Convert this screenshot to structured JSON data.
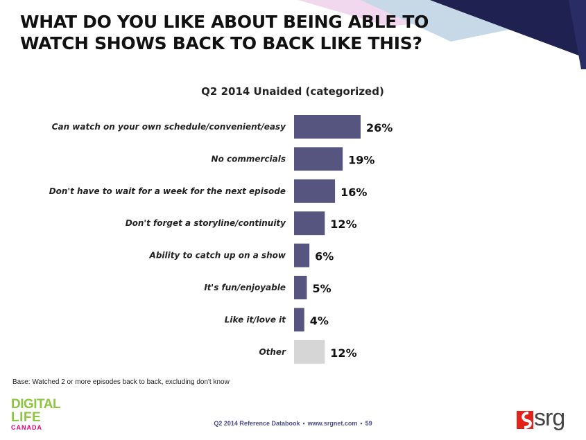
{
  "headline": {
    "line1": "WHAT DO YOU LIKE ABOUT BEING ABLE TO",
    "line2": "WATCH SHOWS BACK TO BACK LIKE THIS?"
  },
  "chart_data": {
    "type": "bar",
    "orientation": "horizontal",
    "title": "Q2 2014 Unaided (categorized)",
    "categories": [
      "Can watch on your own schedule/convenient/easy",
      "No commercials",
      "Don't have to wait for a week for the next episode",
      "Don't forget a storyline/continuity",
      "Ability to catch up on a show",
      "It's fun/enjoyable",
      "Like it/love it",
      "Other"
    ],
    "values": [
      26,
      19,
      16,
      12,
      6,
      5,
      4,
      12
    ],
    "value_labels": [
      "26%",
      "19%",
      "16%",
      "12%",
      "6%",
      "5%",
      "4%",
      "12%"
    ],
    "highlight_color": "#55557f",
    "other_color": "#d6d6d6",
    "xlim": [
      0,
      30
    ],
    "grid": false
  },
  "base_note": "Base: Watched 2 or more episodes back to back, excluding don't know",
  "logo": {
    "line1": "DIGITAL",
    "line2": "LIFE",
    "line3": "CANADA"
  },
  "footer": {
    "source": "Q2 2014 Reference Databook",
    "website": "www.srgnet.com",
    "page": "59",
    "separator": "▪"
  },
  "brand": {
    "name": "srg",
    "accent": "#e2231a"
  }
}
